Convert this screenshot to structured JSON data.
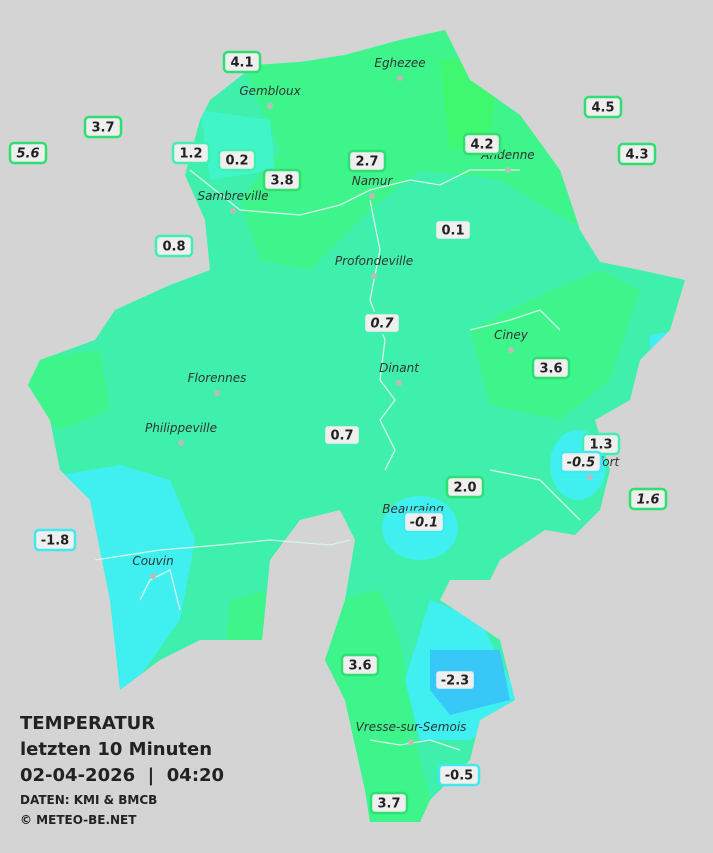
{
  "map": {
    "towns": [
      "Eghezee",
      "Gembloux",
      "Andenne",
      "Namur",
      "Sambreville",
      "Profondeville",
      "Ciney",
      "Dinant",
      "Florennes",
      "Philippeville",
      "Rochefort",
      "Beauraing",
      "Couvin",
      "Vresse-sur-Semois"
    ],
    "stations": [
      {
        "value": "4.1",
        "color": "#2fe070"
      },
      {
        "value": "3.7",
        "color": "#2fe070"
      },
      {
        "value": "5.6",
        "color": "#2fe070"
      },
      {
        "value": "1.2",
        "color": "#3ff0b0"
      },
      {
        "value": "0.2",
        "color": "#3ff0b0"
      },
      {
        "value": "3.8",
        "color": "#2fe070"
      },
      {
        "value": "2.7",
        "color": "#2fe070"
      },
      {
        "value": "4.2",
        "color": "#2fe070"
      },
      {
        "value": "4.5",
        "color": "#2fe070"
      },
      {
        "value": "4.3",
        "color": "#2fe070"
      },
      {
        "value": "0.8",
        "color": "#3ff0b0"
      },
      {
        "value": "0.1",
        "color": "#3ff0b0"
      },
      {
        "value": "0.7",
        "color": "#3ff0b0"
      },
      {
        "value": "3.6",
        "color": "#2fe070"
      },
      {
        "value": "0.7",
        "color": "#3ff0b0"
      },
      {
        "value": "1.3",
        "color": "#3ff0b0"
      },
      {
        "value": "-0.5",
        "color": "#40e8f0"
      },
      {
        "value": "2.0",
        "color": "#2fe070"
      },
      {
        "value": "1.6",
        "color": "#2fe070"
      },
      {
        "value": "-0.1",
        "color": "#40e8f0"
      },
      {
        "value": "-1.8",
        "color": "#40e8f0"
      },
      {
        "value": "3.6",
        "color": "#2fe070"
      },
      {
        "value": "-2.3",
        "color": "#38c8f8"
      },
      {
        "value": "-0.5",
        "color": "#40e8f0"
      },
      {
        "value": "3.7",
        "color": "#2fe070"
      }
    ]
  },
  "caption": {
    "title": "TEMPERATUR",
    "period": "letzten 10 Minuten",
    "datetime": "02-04-2026  |  04:20",
    "source": "DATEN: KMI & BMCB",
    "copyright": "© METEO-BE.NET"
  }
}
